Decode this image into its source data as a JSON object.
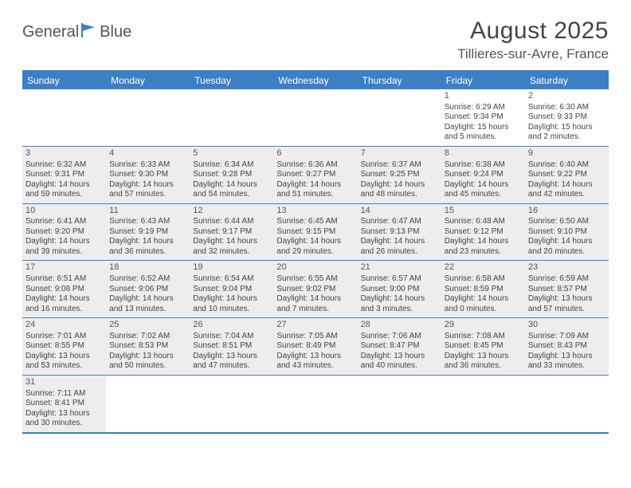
{
  "logo": {
    "text1": "General",
    "text2": "Blue"
  },
  "title": {
    "month": "August 2025",
    "location": "Tillieres-sur-Avre, France"
  },
  "colors": {
    "accent": "#3b7fc4",
    "shaded": "#ededed",
    "text": "#444444",
    "bg": "#ffffff"
  },
  "dow": [
    "Sunday",
    "Monday",
    "Tuesday",
    "Wednesday",
    "Thursday",
    "Friday",
    "Saturday"
  ],
  "weeks": [
    [
      {
        "n": "",
        "shaded": false
      },
      {
        "n": "",
        "shaded": false
      },
      {
        "n": "",
        "shaded": false
      },
      {
        "n": "",
        "shaded": false
      },
      {
        "n": "",
        "shaded": false
      },
      {
        "n": "1",
        "shaded": false,
        "sr": "Sunrise: 6:29 AM",
        "ss": "Sunset: 9:34 PM",
        "d1": "Daylight: 15 hours",
        "d2": "and 5 minutes."
      },
      {
        "n": "2",
        "shaded": false,
        "sr": "Sunrise: 6:30 AM",
        "ss": "Sunset: 9:33 PM",
        "d1": "Daylight: 15 hours",
        "d2": "and 2 minutes."
      }
    ],
    [
      {
        "n": "3",
        "shaded": true,
        "sr": "Sunrise: 6:32 AM",
        "ss": "Sunset: 9:31 PM",
        "d1": "Daylight: 14 hours",
        "d2": "and 59 minutes."
      },
      {
        "n": "4",
        "shaded": true,
        "sr": "Sunrise: 6:33 AM",
        "ss": "Sunset: 9:30 PM",
        "d1": "Daylight: 14 hours",
        "d2": "and 57 minutes."
      },
      {
        "n": "5",
        "shaded": true,
        "sr": "Sunrise: 6:34 AM",
        "ss": "Sunset: 9:28 PM",
        "d1": "Daylight: 14 hours",
        "d2": "and 54 minutes."
      },
      {
        "n": "6",
        "shaded": true,
        "sr": "Sunrise: 6:36 AM",
        "ss": "Sunset: 9:27 PM",
        "d1": "Daylight: 14 hours",
        "d2": "and 51 minutes."
      },
      {
        "n": "7",
        "shaded": true,
        "sr": "Sunrise: 6:37 AM",
        "ss": "Sunset: 9:25 PM",
        "d1": "Daylight: 14 hours",
        "d2": "and 48 minutes."
      },
      {
        "n": "8",
        "shaded": true,
        "sr": "Sunrise: 6:38 AM",
        "ss": "Sunset: 9:24 PM",
        "d1": "Daylight: 14 hours",
        "d2": "and 45 minutes."
      },
      {
        "n": "9",
        "shaded": true,
        "sr": "Sunrise: 6:40 AM",
        "ss": "Sunset: 9:22 PM",
        "d1": "Daylight: 14 hours",
        "d2": "and 42 minutes."
      }
    ],
    [
      {
        "n": "10",
        "shaded": true,
        "sr": "Sunrise: 6:41 AM",
        "ss": "Sunset: 9:20 PM",
        "d1": "Daylight: 14 hours",
        "d2": "and 39 minutes."
      },
      {
        "n": "11",
        "shaded": true,
        "sr": "Sunrise: 6:43 AM",
        "ss": "Sunset: 9:19 PM",
        "d1": "Daylight: 14 hours",
        "d2": "and 36 minutes."
      },
      {
        "n": "12",
        "shaded": true,
        "sr": "Sunrise: 6:44 AM",
        "ss": "Sunset: 9:17 PM",
        "d1": "Daylight: 14 hours",
        "d2": "and 32 minutes."
      },
      {
        "n": "13",
        "shaded": true,
        "sr": "Sunrise: 6:45 AM",
        "ss": "Sunset: 9:15 PM",
        "d1": "Daylight: 14 hours",
        "d2": "and 29 minutes."
      },
      {
        "n": "14",
        "shaded": true,
        "sr": "Sunrise: 6:47 AM",
        "ss": "Sunset: 9:13 PM",
        "d1": "Daylight: 14 hours",
        "d2": "and 26 minutes."
      },
      {
        "n": "15",
        "shaded": true,
        "sr": "Sunrise: 6:48 AM",
        "ss": "Sunset: 9:12 PM",
        "d1": "Daylight: 14 hours",
        "d2": "and 23 minutes."
      },
      {
        "n": "16",
        "shaded": true,
        "sr": "Sunrise: 6:50 AM",
        "ss": "Sunset: 9:10 PM",
        "d1": "Daylight: 14 hours",
        "d2": "and 20 minutes."
      }
    ],
    [
      {
        "n": "17",
        "shaded": true,
        "sr": "Sunrise: 6:51 AM",
        "ss": "Sunset: 9:08 PM",
        "d1": "Daylight: 14 hours",
        "d2": "and 16 minutes."
      },
      {
        "n": "18",
        "shaded": true,
        "sr": "Sunrise: 6:52 AM",
        "ss": "Sunset: 9:06 PM",
        "d1": "Daylight: 14 hours",
        "d2": "and 13 minutes."
      },
      {
        "n": "19",
        "shaded": true,
        "sr": "Sunrise: 6:54 AM",
        "ss": "Sunset: 9:04 PM",
        "d1": "Daylight: 14 hours",
        "d2": "and 10 minutes."
      },
      {
        "n": "20",
        "shaded": true,
        "sr": "Sunrise: 6:55 AM",
        "ss": "Sunset: 9:02 PM",
        "d1": "Daylight: 14 hours",
        "d2": "and 7 minutes."
      },
      {
        "n": "21",
        "shaded": true,
        "sr": "Sunrise: 6:57 AM",
        "ss": "Sunset: 9:00 PM",
        "d1": "Daylight: 14 hours",
        "d2": "and 3 minutes."
      },
      {
        "n": "22",
        "shaded": true,
        "sr": "Sunrise: 6:58 AM",
        "ss": "Sunset: 8:59 PM",
        "d1": "Daylight: 14 hours",
        "d2": "and 0 minutes."
      },
      {
        "n": "23",
        "shaded": true,
        "sr": "Sunrise: 6:59 AM",
        "ss": "Sunset: 8:57 PM",
        "d1": "Daylight: 13 hours",
        "d2": "and 57 minutes."
      }
    ],
    [
      {
        "n": "24",
        "shaded": true,
        "sr": "Sunrise: 7:01 AM",
        "ss": "Sunset: 8:55 PM",
        "d1": "Daylight: 13 hours",
        "d2": "and 53 minutes."
      },
      {
        "n": "25",
        "shaded": true,
        "sr": "Sunrise: 7:02 AM",
        "ss": "Sunset: 8:53 PM",
        "d1": "Daylight: 13 hours",
        "d2": "and 50 minutes."
      },
      {
        "n": "26",
        "shaded": true,
        "sr": "Sunrise: 7:04 AM",
        "ss": "Sunset: 8:51 PM",
        "d1": "Daylight: 13 hours",
        "d2": "and 47 minutes."
      },
      {
        "n": "27",
        "shaded": true,
        "sr": "Sunrise: 7:05 AM",
        "ss": "Sunset: 8:49 PM",
        "d1": "Daylight: 13 hours",
        "d2": "and 43 minutes."
      },
      {
        "n": "28",
        "shaded": true,
        "sr": "Sunrise: 7:06 AM",
        "ss": "Sunset: 8:47 PM",
        "d1": "Daylight: 13 hours",
        "d2": "and 40 minutes."
      },
      {
        "n": "29",
        "shaded": true,
        "sr": "Sunrise: 7:08 AM",
        "ss": "Sunset: 8:45 PM",
        "d1": "Daylight: 13 hours",
        "d2": "and 36 minutes."
      },
      {
        "n": "30",
        "shaded": true,
        "sr": "Sunrise: 7:09 AM",
        "ss": "Sunset: 8:43 PM",
        "d1": "Daylight: 13 hours",
        "d2": "and 33 minutes."
      }
    ],
    [
      {
        "n": "31",
        "shaded": true,
        "sr": "Sunrise: 7:11 AM",
        "ss": "Sunset: 8:41 PM",
        "d1": "Daylight: 13 hours",
        "d2": "and 30 minutes."
      },
      {
        "n": "",
        "shaded": false
      },
      {
        "n": "",
        "shaded": false
      },
      {
        "n": "",
        "shaded": false
      },
      {
        "n": "",
        "shaded": false
      },
      {
        "n": "",
        "shaded": false
      },
      {
        "n": "",
        "shaded": false
      }
    ]
  ]
}
